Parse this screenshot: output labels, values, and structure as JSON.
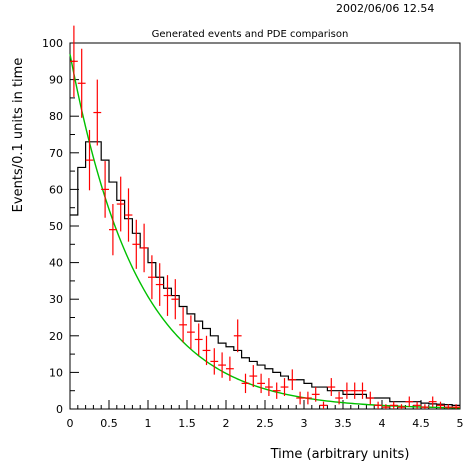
{
  "header": {
    "timestamp": "2002/06/06   12.54"
  },
  "chart_data": {
    "type": "histogram",
    "title": "Generated events and PDE comparison",
    "xlabel": "Time (arbitrary units)",
    "ylabel": "Events/0.1 units in time",
    "xlim": [
      0,
      5
    ],
    "ylim": [
      0,
      100
    ],
    "x_ticks": [
      "0",
      "0.5",
      "1",
      "1.5",
      "2",
      "2.5",
      "3",
      "3.5",
      "4",
      "4.5",
      "5"
    ],
    "y_ticks": [
      "0",
      "10",
      "20",
      "30",
      "40",
      "50",
      "60",
      "70",
      "80",
      "90",
      "100"
    ],
    "colors": {
      "histogram": "#000000",
      "points": "#ff0000",
      "curve": "#00c000"
    },
    "series": [
      {
        "type": "step",
        "bin_width": 0.1,
        "x_start": 0,
        "values": [
          53,
          66,
          73,
          73,
          68,
          62,
          57,
          52,
          48,
          44,
          40,
          36,
          33,
          31,
          28,
          26,
          24,
          22,
          20,
          18,
          17,
          16,
          14,
          13,
          12,
          11,
          10,
          9,
          8,
          8,
          7,
          6,
          6,
          5,
          5,
          4,
          4,
          4,
          3,
          3,
          3,
          2,
          2,
          2,
          2,
          1.6,
          1.4,
          1.3,
          1.2,
          1.0
        ]
      },
      {
        "type": "errorbar",
        "x": [
          0.05,
          0.15,
          0.25,
          0.35,
          0.45,
          0.55,
          0.65,
          0.75,
          0.85,
          0.95,
          1.05,
          1.15,
          1.25,
          1.35,
          1.45,
          1.55,
          1.65,
          1.75,
          1.85,
          1.95,
          2.05,
          2.15,
          2.25,
          2.35,
          2.45,
          2.55,
          2.65,
          2.75,
          2.85,
          2.95,
          3.05,
          3.15,
          3.25,
          3.35,
          3.45,
          3.55,
          3.65,
          3.75,
          3.85,
          3.95,
          4.05,
          4.15,
          4.25,
          4.35,
          4.45,
          4.55,
          4.65,
          4.75,
          4.85,
          4.95
        ],
        "y": [
          95,
          89,
          68,
          81,
          60,
          49,
          56,
          53,
          45,
          44,
          36,
          34,
          31,
          30,
          23,
          21,
          19,
          16,
          13,
          12,
          11,
          20,
          7,
          9,
          7,
          6,
          5,
          6,
          8,
          3,
          3,
          4,
          1,
          6,
          3,
          5,
          5,
          5,
          3,
          1,
          0.5,
          1,
          0.5,
          2,
          1,
          0.5,
          2,
          1,
          0.5,
          0.5
        ]
      },
      {
        "type": "curve",
        "function": "exponential",
        "amplitude": 97,
        "rate": 1.15
      }
    ]
  }
}
